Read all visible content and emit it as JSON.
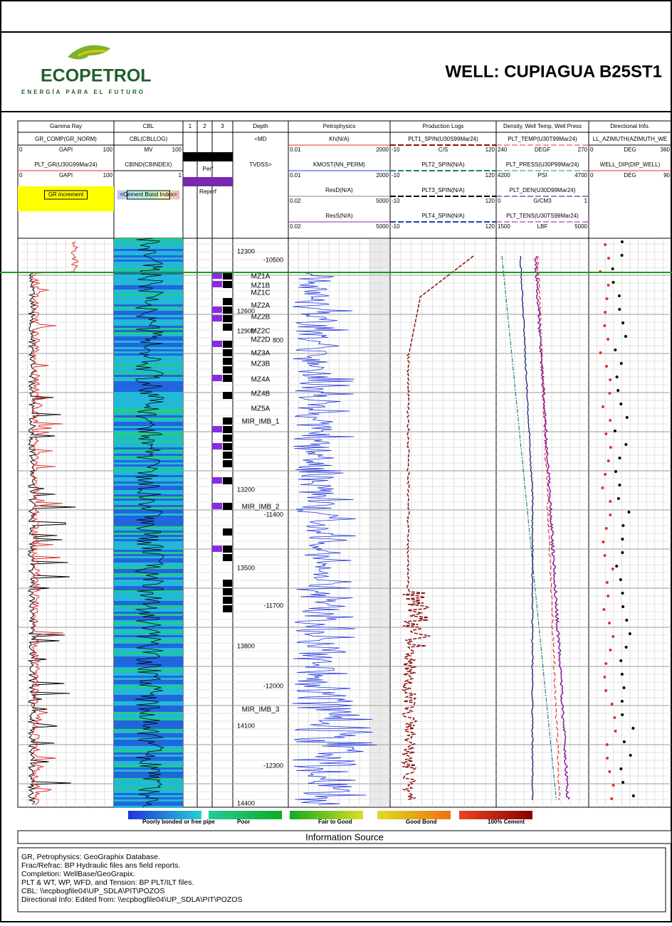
{
  "header": {
    "logo": "ECOPETROL",
    "tagline": "ENERGÍA PARA EL FUTURO",
    "title": "WELL: CUPIAGUA B25ST1"
  },
  "tracks": [
    {
      "title": "Gamma Ray",
      "curves": [
        {
          "name": "GR_COMP(GR_NORM)",
          "left": 0,
          "unit": "GAPI",
          "right": 100,
          "color": "#000000"
        },
        {
          "name": "PLT_GR(U30G99Mar24)",
          "left": 0,
          "unit": "GAPI",
          "right": 100,
          "color": "#e03030"
        }
      ],
      "box": "GR increment"
    },
    {
      "title": "CBL",
      "curves": [
        {
          "name": "CBL(CBLLOG)",
          "unit": "MV",
          "right": 100,
          "color": "#000000"
        },
        {
          "name": "CBIND(CBINDEX)",
          "right": 1,
          "color": "#000000"
        }
      ],
      "box": "<Cement Bond Index>"
    },
    {
      "title": "1"
    },
    {
      "title": "2"
    },
    {
      "title": "3"
    },
    {
      "title": "Depth",
      "curves": [
        {
          "name": "<MD"
        },
        {
          "name": "TVDSS>"
        }
      ]
    },
    {
      "title": "Petrophysics",
      "curves": [
        {
          "name": "Kh(N/A)",
          "left": 0.01,
          "right": 2000,
          "color": "#e03030"
        },
        {
          "name": "KMOST(NN_PERM)",
          "left": 0.01,
          "right": 2000,
          "color": "#2040e0"
        },
        {
          "name": "ResD(N/A)",
          "left": 0.02,
          "right": 5000,
          "color": "#888888"
        },
        {
          "name": "ResS(N/A)",
          "left": 0.02,
          "right": 5000,
          "color": "#8030a0"
        }
      ]
    },
    {
      "title": "Production Logs",
      "curves": [
        {
          "name": "PLT1_SPIN(U30S99Mar24)",
          "left": -10,
          "unit": "C/S",
          "right": 120,
          "color": "#8b1010"
        },
        {
          "name": "PLT2_SPIN(N/A)",
          "left": -10,
          "right": 120,
          "color": "#208080"
        },
        {
          "name": "PLT3_SPIN(N/A)",
          "left": -10,
          "right": 120,
          "color": "#000000"
        },
        {
          "name": "PLT4_SPIN(N/A)",
          "left": -10,
          "right": 120,
          "color": "#2040b0"
        }
      ]
    },
    {
      "title": "Density, Well Temp, Well Press",
      "curves": [
        {
          "name": "PLT_TEMP(U30T99Mar24)",
          "left": 240,
          "unit": "DEGF",
          "right": 270,
          "color": "#e03030"
        },
        {
          "name": "PLT_PRESS(U30P99Mar24)",
          "left": 4200,
          "unit": "PSI",
          "right": 4700,
          "color": "#208080"
        },
        {
          "name": "PLT_DEN(U30D99Mar24)",
          "left": 0,
          "unit": "G/CM3",
          "right": 1,
          "color": "#101070"
        },
        {
          "name": "PLT_TENS(U30TS99Mar24)",
          "left": 1500,
          "unit": "LBF",
          "right": 5000,
          "color": "#8a1a9a"
        }
      ]
    },
    {
      "title": "Directional Info.",
      "curves": [
        {
          "name": "LL_AZIMUTH(AZIMUTH_WE",
          "left": 0,
          "unit": "DEG",
          "right": 360,
          "color": "#000000"
        },
        {
          "name": "WELL_DIP(DIP_WELL)",
          "left": 0,
          "unit": "DEG",
          "right": 90,
          "color": "#e03030"
        }
      ]
    }
  ],
  "completion": {
    "perf": "Perf",
    "reperf": "Reperf"
  },
  "depth": {
    "md": [
      12300,
      12600,
      12900,
      13200,
      13500,
      13800,
      14100,
      14400
    ],
    "tvdss": [
      -10500,
      -11400,
      -11700,
      -12000,
      -12300
    ],
    "tvdss_partial": "800"
  },
  "zones": [
    "MZ1A",
    "MZ1B",
    "MZ1C",
    "MZ2A",
    "MZ2B",
    "MZ2C",
    "MZ2D",
    "MZ3A",
    "MZ3B",
    "MZ4A",
    "MZ4B",
    "MZ5A",
    "MIR_IMB_1",
    "MIR_IMB_2",
    "MIR_IMB_3"
  ],
  "legend": [
    "Poorly bonded or free pipe",
    "Poor",
    "Fair to Good",
    "Good Bond",
    "100% Cement"
  ],
  "info": {
    "title": "Information Source",
    "lines": [
      "GR, Petrophysics: GeoGraphix Database.",
      "Frac/Refrac: BP Hydraulic files ans field reports.",
      "Completion: WellBase/GeoGrapix.",
      "PLT & WT, WP, WFD, and Tension: BP PLT/ILT files.",
      "CBL: \\\\ecpbogfile04\\UP_SDLA\\PIT\\POZOS",
      "Directional Info: Edited from: \\\\ecpbogfile04\\UP_SDLA\\PIT\\POZOS"
    ]
  }
}
